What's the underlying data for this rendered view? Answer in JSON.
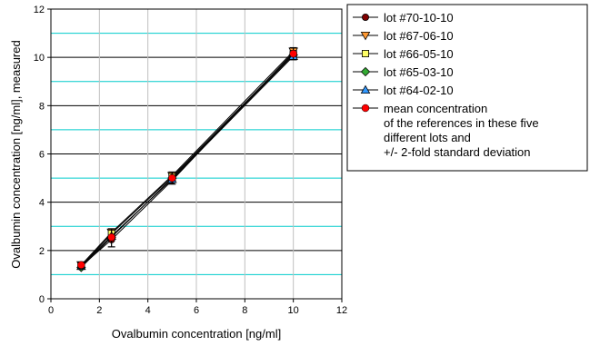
{
  "chart_data": {
    "type": "line",
    "xlabel": "Ovalbumin concentration [ng/ml]",
    "ylabel": "Ovalbumin concentration [ng/ml], measured",
    "xlim": [
      0,
      12
    ],
    "ylim": [
      0,
      12
    ],
    "x_ticks": [
      "0",
      "2",
      "4",
      "6",
      "8",
      "10",
      "12"
    ],
    "y_ticks": [
      "0",
      "2",
      "4",
      "6",
      "8",
      "10",
      "12"
    ],
    "grid": {
      "major": {
        "step": 2,
        "color": "#000000"
      },
      "minor": {
        "step": 1,
        "color": "#00cccc"
      }
    },
    "legend_position": "right",
    "x": [
      1.25,
      2.5,
      5,
      10
    ],
    "series": [
      {
        "name": "lot #70-10-10",
        "values": [
          1.35,
          2.45,
          4.9,
          10.2
        ],
        "marker": "circle",
        "color": "#800000"
      },
      {
        "name": "lot #67-06-10",
        "values": [
          1.4,
          2.75,
          5.1,
          10.25
        ],
        "marker": "triangle-down",
        "color": "#ff9933"
      },
      {
        "name": "lot #66-05-10",
        "values": [
          1.35,
          2.7,
          5.05,
          10.15
        ],
        "marker": "square",
        "color": "#ffff66"
      },
      {
        "name": "lot #65-03-10",
        "values": [
          1.3,
          2.55,
          5.0,
          10.1
        ],
        "marker": "diamond",
        "color": "#33aa33"
      },
      {
        "name": "lot #64-02-10",
        "values": [
          1.35,
          2.6,
          4.95,
          10.05
        ],
        "marker": "triangle-up",
        "color": "#3399ff"
      }
    ],
    "mean": {
      "name_lines": [
        "mean concentration",
        "of the references in these five",
        "different lots and",
        "+/- 2-fold standard deviation"
      ],
      "values": [
        1.4,
        2.55,
        5.0,
        10.15
      ],
      "error_low": [
        1.25,
        2.15,
        4.75,
        9.9
      ],
      "error_high": [
        1.5,
        2.9,
        5.25,
        10.4
      ],
      "color": "#ff0000"
    }
  }
}
